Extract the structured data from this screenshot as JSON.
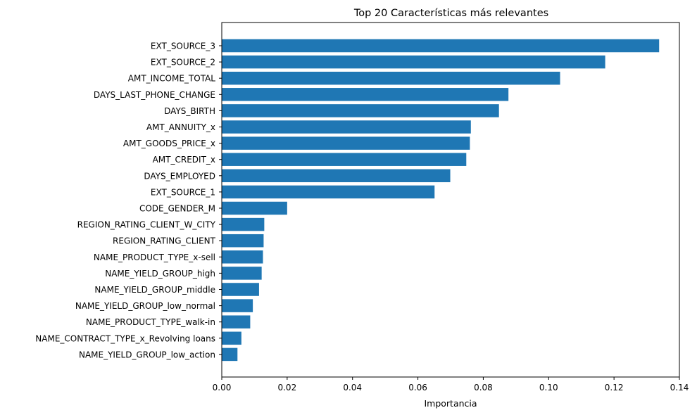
{
  "chart_data": {
    "type": "bar",
    "orientation": "horizontal",
    "title": "Top 20 Características más relevantes",
    "xlabel": "Importancia",
    "ylabel": "",
    "xlim": [
      0,
      0.14
    ],
    "xticks": [
      0.0,
      0.02,
      0.04,
      0.06,
      0.08,
      0.1,
      0.12,
      0.14
    ],
    "xtick_labels": [
      "0.00",
      "0.02",
      "0.04",
      "0.06",
      "0.08",
      "0.10",
      "0.12",
      "0.14"
    ],
    "grid": false,
    "bar_color": "#1f77b4",
    "categories": [
      "EXT_SOURCE_3",
      "EXT_SOURCE_2",
      "AMT_INCOME_TOTAL",
      "DAYS_LAST_PHONE_CHANGE",
      "DAYS_BIRTH",
      "AMT_ANNUITY_x",
      "AMT_GOODS_PRICE_x",
      "AMT_CREDIT_x",
      "DAYS_EMPLOYED",
      "EXT_SOURCE_1",
      "CODE_GENDER_M",
      "REGION_RATING_CLIENT_W_CITY",
      "REGION_RATING_CLIENT",
      "NAME_PRODUCT_TYPE_x-sell",
      "NAME_YIELD_GROUP_high",
      "NAME_YIELD_GROUP_middle",
      "NAME_YIELD_GROUP_low_normal",
      "NAME_PRODUCT_TYPE_walk-in",
      "NAME_CONTRACT_TYPE_x_Revolving loans",
      "NAME_YIELD_GROUP_low_action"
    ],
    "values": [
      0.1338,
      0.1173,
      0.1035,
      0.0877,
      0.0848,
      0.0762,
      0.0759,
      0.0748,
      0.0699,
      0.0651,
      0.02,
      0.013,
      0.0128,
      0.0126,
      0.0122,
      0.0114,
      0.0095,
      0.0087,
      0.006,
      0.0048
    ]
  }
}
